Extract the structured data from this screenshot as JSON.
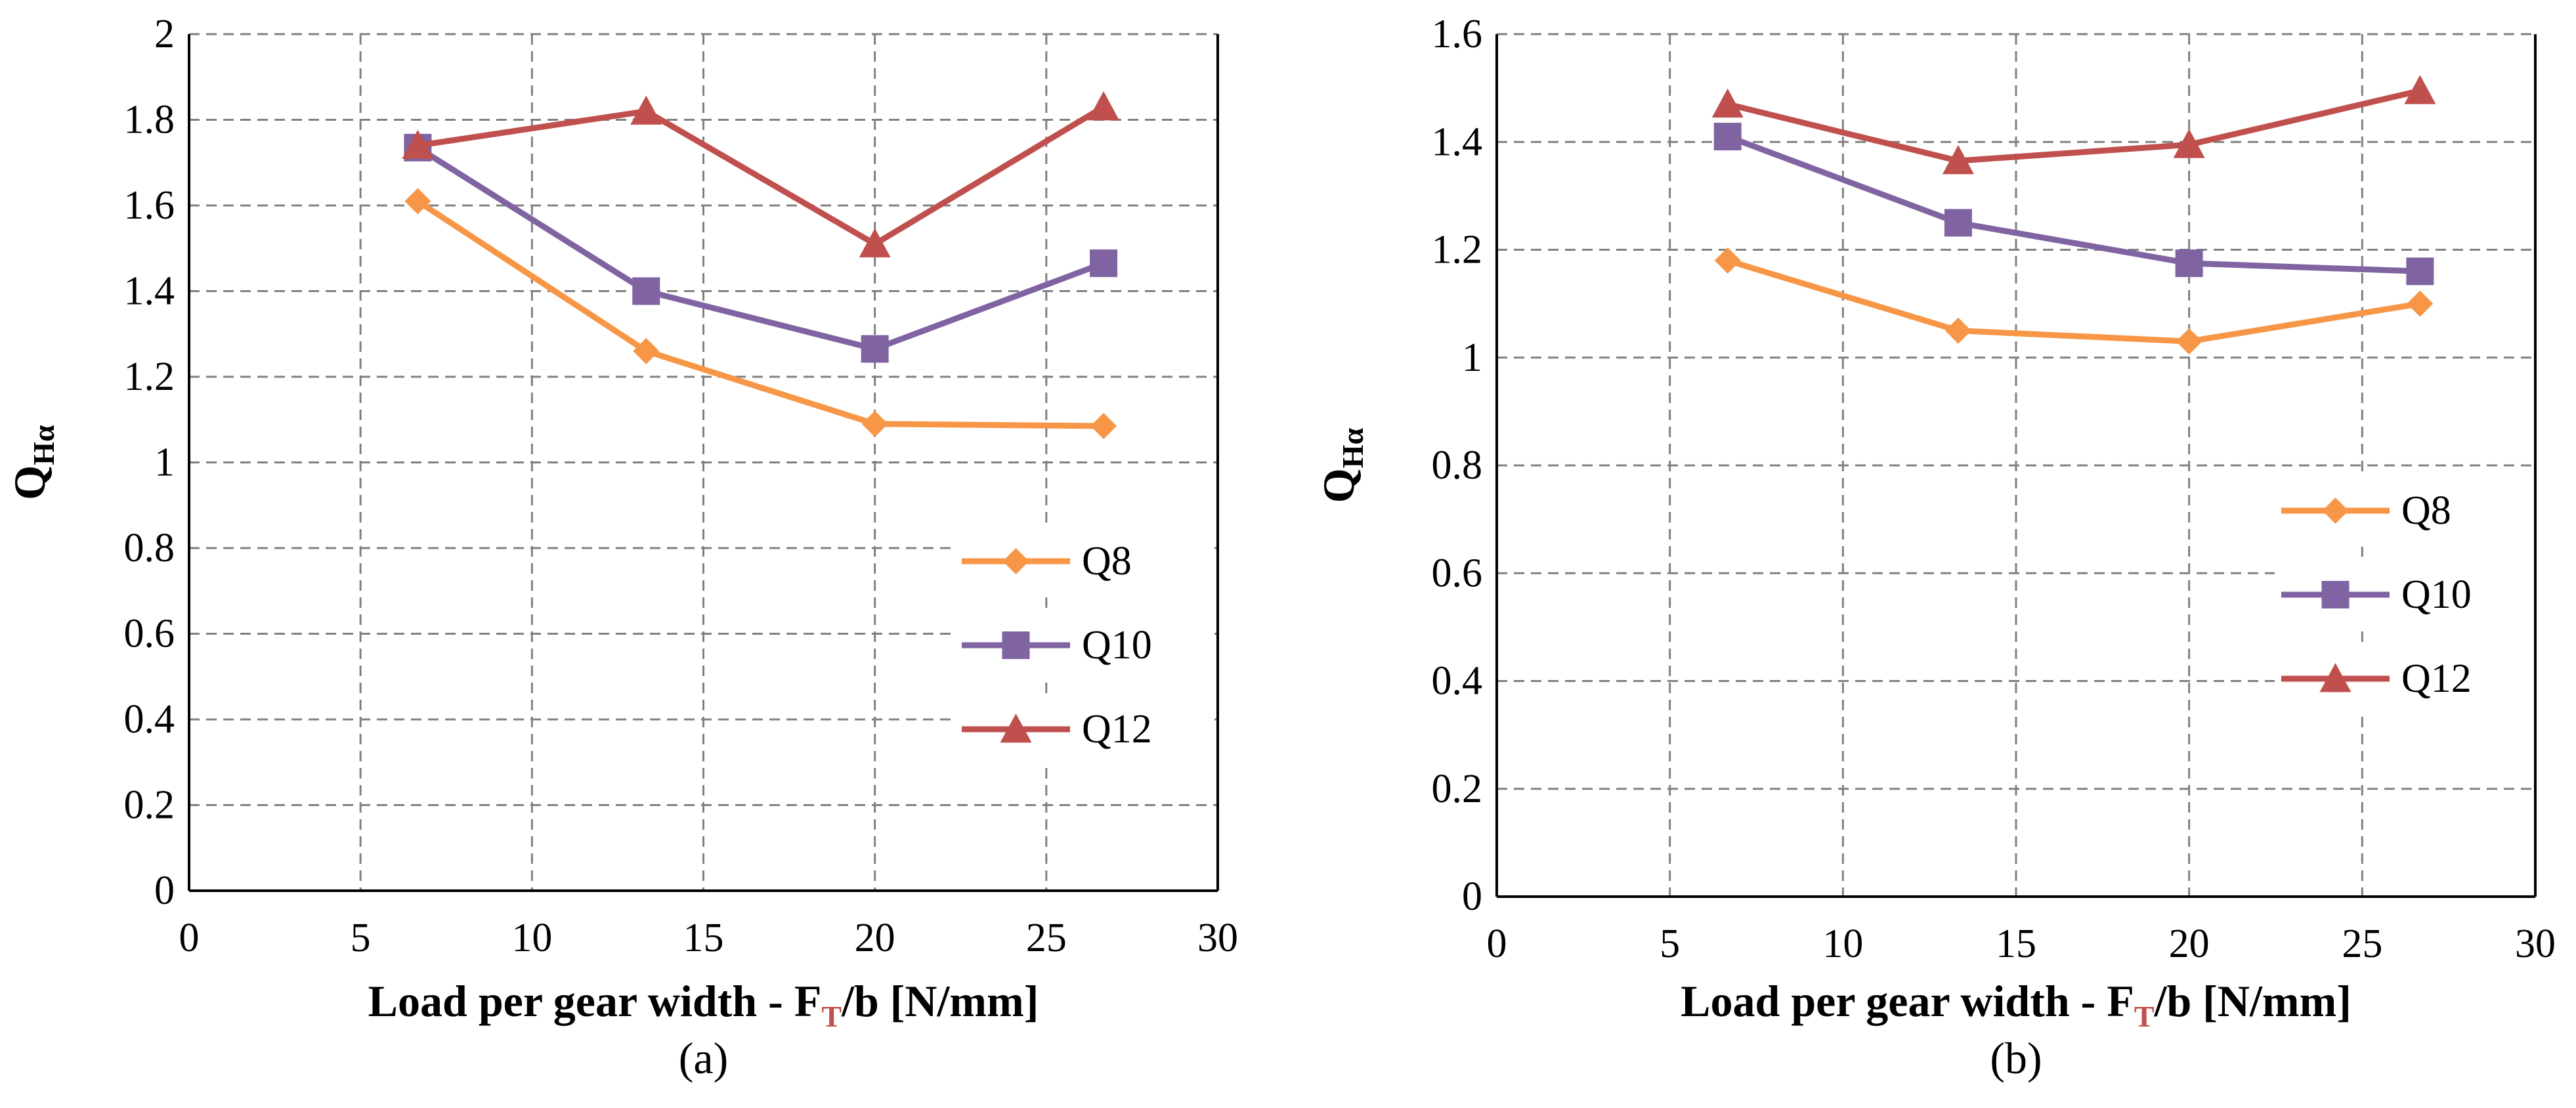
{
  "colors": {
    "Q8": "#F79646",
    "Q10": "#8064A2",
    "Q12": "#C0504D"
  },
  "chart_data": [
    {
      "type": "line",
      "panel_label": "(a)",
      "title": "",
      "xlabel_main": "Load per gear width - F",
      "xlabel_sub": "T",
      "xlabel_tail": "/b [N/mm]",
      "ylabel_main": "Q",
      "ylabel_sub": "Hα",
      "xlim": [
        0,
        30
      ],
      "ylim": [
        0,
        2
      ],
      "xticks": [
        0,
        5,
        10,
        15,
        20,
        25,
        30
      ],
      "yticks": [
        "0",
        "0.2",
        "0.4",
        "0.6",
        "0.8",
        "1",
        "1.2",
        "1.4",
        "1.6",
        "1.8",
        "2"
      ],
      "legend_position": "lower-right",
      "x": [
        6.67,
        13.33,
        20,
        26.67
      ],
      "series": [
        {
          "name": "Q8",
          "marker": "diamond",
          "values": [
            1.61,
            1.26,
            1.09,
            1.085
          ]
        },
        {
          "name": "Q10",
          "marker": "square",
          "values": [
            1.735,
            1.4,
            1.265,
            1.465
          ]
        },
        {
          "name": "Q12",
          "marker": "triangle",
          "values": [
            1.74,
            1.82,
            1.51,
            1.83
          ]
        }
      ]
    },
    {
      "type": "line",
      "panel_label": "(b)",
      "title": "",
      "xlabel_main": "Load per gear width - F",
      "xlabel_sub": "T",
      "xlabel_tail": "/b [N/mm]",
      "ylabel_main": "Q",
      "ylabel_sub": "Hα",
      "xlim": [
        0,
        30
      ],
      "ylim": [
        0,
        1.6
      ],
      "xticks": [
        0,
        5,
        10,
        15,
        20,
        25,
        30
      ],
      "yticks": [
        "0",
        "0.2",
        "0.4",
        "0.6",
        "0.8",
        "1",
        "1.2",
        "1.4",
        "1.6"
      ],
      "legend_position": "right",
      "x": [
        6.67,
        13.33,
        20,
        26.67
      ],
      "series": [
        {
          "name": "Q8",
          "marker": "diamond",
          "values": [
            1.18,
            1.05,
            1.03,
            1.1
          ]
        },
        {
          "name": "Q10",
          "marker": "square",
          "values": [
            1.41,
            1.25,
            1.175,
            1.16
          ]
        },
        {
          "name": "Q12",
          "marker": "triangle",
          "values": [
            1.47,
            1.365,
            1.395,
            1.495
          ]
        }
      ]
    }
  ]
}
